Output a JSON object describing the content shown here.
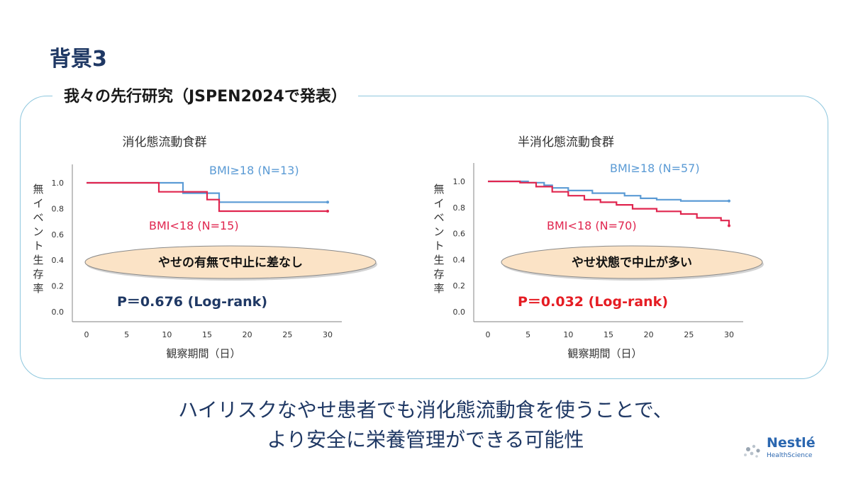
{
  "slide": {
    "title": "背景3",
    "panel_heading": "我々の先行研究（JSPEN2024で発表）",
    "conclusion_line1": "ハイリスクなやせ患者でも消化態流動食を使うことで、",
    "conclusion_line2": "より安全に栄養管理ができる可能性",
    "logo": {
      "name": "Nestlé",
      "sub": "HealthScience"
    }
  },
  "colors": {
    "bmi_ge18": "#5b9bd5",
    "bmi_lt18": "#e0264f",
    "navy": "#1f3864",
    "ellipse_fill": "#fbe3c6"
  },
  "chart_data": [
    {
      "type": "line",
      "title": "消化態流動食群",
      "xlabel": "観察期間（日）",
      "ylabel": "無イベント生存率",
      "xlim": [
        0,
        30
      ],
      "ylim": [
        0,
        1.0
      ],
      "xticks": [
        "0",
        "5",
        "10",
        "15",
        "20",
        "25",
        "30"
      ],
      "yticks": [
        "0.0",
        "0.2",
        "0.4",
        "0.6",
        "0.8",
        "1.0"
      ],
      "series": [
        {
          "name": "BMI≥18 (N=13)",
          "color": "#5b9bd5",
          "x": [
            0,
            12,
            12,
            16.5,
            16.5,
            18,
            18,
            30
          ],
          "y": [
            1.0,
            1.0,
            0.92,
            0.92,
            0.85,
            0.85,
            0.85,
            0.85
          ]
        },
        {
          "name": "BMI<18 (N=15)",
          "color": "#e0264f",
          "x": [
            0,
            9,
            9,
            15,
            15,
            16.5,
            16.5,
            30
          ],
          "y": [
            1.0,
            1.0,
            0.93,
            0.93,
            0.87,
            0.87,
            0.78,
            0.78
          ]
        }
      ],
      "annotation": "やせの有無で中止に差なし",
      "p_value": "P＝0.676 (Log-rank)",
      "p_color": "#1f3864"
    },
    {
      "type": "line",
      "title": "半消化態流動食群",
      "xlabel": "観察期間（日）",
      "ylabel": "無イベント生存率",
      "xlim": [
        0,
        30
      ],
      "ylim": [
        0,
        1.0
      ],
      "xticks": [
        "0",
        "5",
        "10",
        "15",
        "20",
        "25",
        "30"
      ],
      "yticks": [
        "0.0",
        "0.2",
        "0.4",
        "0.6",
        "0.8",
        "1.0"
      ],
      "series": [
        {
          "name": "BMI≥18 (N=57)",
          "color": "#5b9bd5",
          "x": [
            0,
            5,
            5,
            7,
            7,
            8,
            8,
            10,
            10,
            13,
            13,
            17,
            17,
            19,
            19,
            21,
            21,
            24,
            24,
            30
          ],
          "y": [
            1.0,
            1.0,
            0.99,
            0.99,
            0.97,
            0.97,
            0.95,
            0.95,
            0.93,
            0.93,
            0.91,
            0.91,
            0.89,
            0.89,
            0.87,
            0.87,
            0.86,
            0.86,
            0.85,
            0.85
          ]
        },
        {
          "name": "BMI<18 (N=70)",
          "color": "#e0264f",
          "x": [
            0,
            4,
            4,
            6,
            6,
            8,
            8,
            10,
            10,
            12,
            12,
            14,
            14,
            16,
            16,
            18,
            18,
            21,
            21,
            24,
            24,
            26,
            26,
            29,
            29,
            30,
            30
          ],
          "y": [
            1.0,
            1.0,
            0.99,
            0.99,
            0.96,
            0.96,
            0.92,
            0.92,
            0.89,
            0.89,
            0.86,
            0.86,
            0.84,
            0.84,
            0.82,
            0.82,
            0.79,
            0.79,
            0.77,
            0.77,
            0.75,
            0.75,
            0.72,
            0.72,
            0.7,
            0.7,
            0.66
          ]
        }
      ],
      "annotation": "やせ状態で中止が多い",
      "p_value": "P＝0.032 (Log-rank)",
      "p_color": "#e51c23"
    }
  ]
}
